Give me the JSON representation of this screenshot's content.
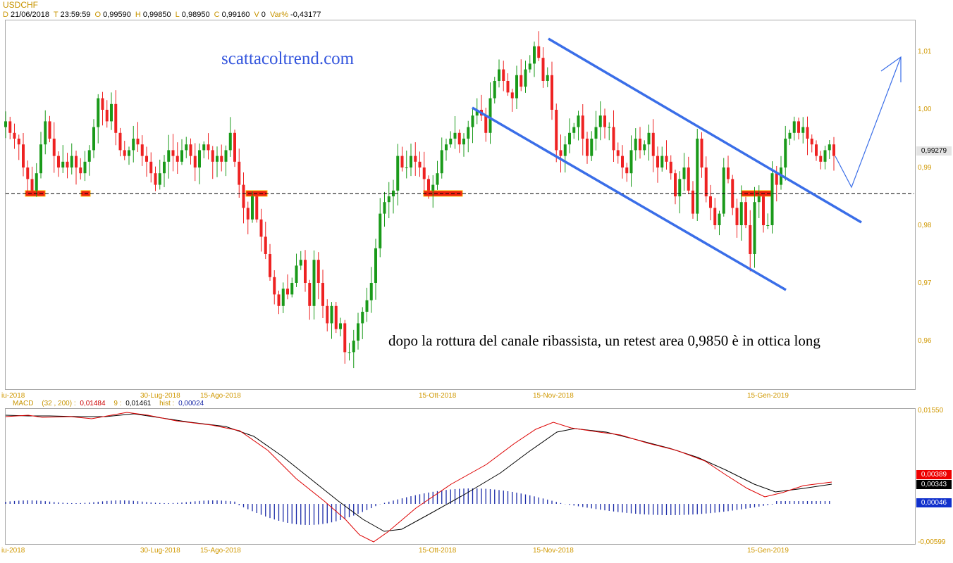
{
  "symbol": "USDCHF",
  "ohlc": {
    "d_label": "D",
    "d_value": "21/06/2018",
    "t_label": "T",
    "t_value": "23:59:59",
    "o_label": "O",
    "o_value": "0,99590",
    "h_label": "H",
    "h_value": "0,99850",
    "l_label": "L",
    "l_value": "0,98950",
    "c_label": "C",
    "c_value": "0,99160",
    "vol_label": "V",
    "vol_value": "0",
    "var_label": "Var%",
    "var_value": "-0,43177"
  },
  "watermark": "scattacoltrend.com",
  "annotation": "dopo la rottura del canale ribassista, un retest area 0,9850 è in ottica long",
  "price_axis": {
    "ticks": [
      "1,01",
      "1,00",
      "0,99",
      "0,98",
      "0,97",
      "0,96"
    ],
    "last_price": "0,99279",
    "dashed_level": 0.9855
  },
  "date_axis": {
    "labels": [
      "iu-2018",
      "30-Lug-2018",
      "15-Ago-2018",
      "15-Ott-2018",
      "15-Nov-2018",
      "15-Gen-2019"
    ]
  },
  "macd": {
    "label": "MACD",
    "params": "(32 , 200) :",
    "macd_value": "0,01484",
    "signal_label": "9 :",
    "signal_value": "0,01461",
    "hist_label": "hist :",
    "hist_value": "0,00024",
    "axis_top": "0,01550",
    "axis_bottom": "-0,00599",
    "tag_macd": "0,00389",
    "tag_signal": "0,00343",
    "tag_hist": "0,00046"
  },
  "colors": {
    "up_candle": "#1a9a1a",
    "down_candle": "#ee2222",
    "channel": "#3a6ee8",
    "axis_text": "#d09800",
    "macd_line": "#dd0000",
    "signal_line": "#000000",
    "histogram": "#1a2aa8"
  },
  "chart_data": {
    "type": "candlestick",
    "title": "USDCHF",
    "ylim": [
      0.953,
      1.0135
    ],
    "closes": [
      0.998,
      0.996,
      0.995,
      0.994,
      0.99,
      0.988,
      0.986,
      0.989,
      0.994,
      0.998,
      0.995,
      0.992,
      0.99,
      0.991,
      0.99,
      0.992,
      0.99,
      0.989,
      0.991,
      0.993,
      0.997,
      1.002,
      1.0,
      0.998,
      1.001,
      0.996,
      0.993,
      0.992,
      0.993,
      0.995,
      0.994,
      0.992,
      0.991,
      0.989,
      0.987,
      0.989,
      0.991,
      0.993,
      0.992,
      0.991,
      0.993,
      0.994,
      0.992,
      0.99,
      0.993,
      0.994,
      0.993,
      0.991,
      0.992,
      0.991,
      0.993,
      0.996,
      0.991,
      0.987,
      0.983,
      0.981,
      0.985,
      0.981,
      0.978,
      0.975,
      0.971,
      0.968,
      0.966,
      0.969,
      0.968,
      0.97,
      0.973,
      0.974,
      0.97,
      0.966,
      0.974,
      0.97,
      0.966,
      0.963,
      0.966,
      0.962,
      0.963,
      0.958,
      0.958,
      0.96,
      0.963,
      0.965,
      0.967,
      0.97,
      0.976,
      0.982,
      0.984,
      0.985,
      0.986,
      0.992,
      0.99,
      0.99,
      0.992,
      0.991,
      0.99,
      0.988,
      0.986,
      0.987,
      0.989,
      0.993,
      0.994,
      0.995,
      0.996,
      0.994,
      0.995,
      0.997,
      0.999,
      1.0,
      0.999,
      0.996,
      1.002,
      1.005,
      1.007,
      1.005,
      1.003,
      1.002,
      1.006,
      1.004,
      1.007,
      1.008,
      1.011,
      1.009,
      1.005,
      1.006,
      1.0,
      0.993,
      0.992,
      0.994,
      0.996,
      0.997,
      0.999,
      0.995,
      0.992,
      0.995,
      0.997,
      0.999,
      0.997,
      0.997,
      0.993,
      0.992,
      0.99,
      0.989,
      0.993,
      0.995,
      0.993,
      0.994,
      0.996,
      0.992,
      0.99,
      0.992,
      0.991,
      0.989,
      0.985,
      0.988,
      0.99,
      0.986,
      0.982,
      0.995,
      0.99,
      0.985,
      0.983,
      0.98,
      0.982,
      0.99,
      0.988,
      0.983,
      0.98,
      0.984,
      0.98,
      0.975,
      0.984,
      0.985,
      0.98,
      0.98,
      0.989,
      0.987,
      0.99,
      0.995,
      0.996,
      0.998,
      0.996,
      0.997,
      0.995,
      0.994,
      0.992,
      0.991,
      0.993,
      0.994,
      0.992
    ]
  }
}
